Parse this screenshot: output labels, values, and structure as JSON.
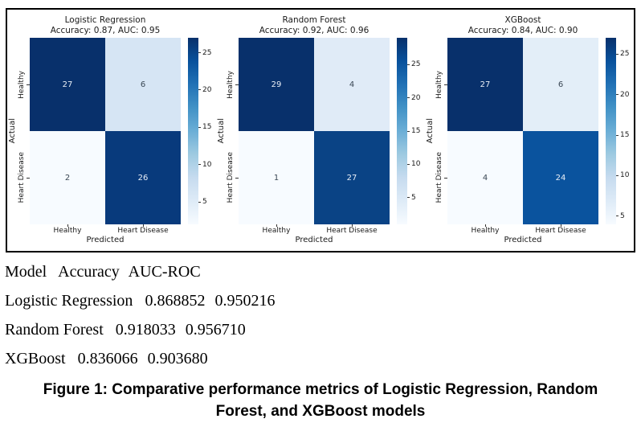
{
  "figure": {
    "panels": [
      {
        "title": "Logistic Regression",
        "subtitle": "Accuracy: 0.87, AUC: 0.95",
        "ylabel": "Actual",
        "xlabel": "Predicted",
        "yticks": [
          "Healthy",
          "Heart Disease"
        ],
        "xticks": [
          "Healthy",
          "Heart Disease"
        ],
        "cells": [
          {
            "value": "27",
            "bg": "#08306b",
            "fg": "#e9eff7"
          },
          {
            "value": "6",
            "bg": "#d6e5f4",
            "fg": "#3a4754"
          },
          {
            "value": "2",
            "bg": "#f7fbff",
            "fg": "#3a4754"
          },
          {
            "value": "26",
            "bg": "#083a7c",
            "fg": "#e9eff7"
          }
        ],
        "colorbar": {
          "vmin": 2,
          "vmax": 27,
          "ticks": [
            5,
            10,
            15,
            20,
            25
          ]
        }
      },
      {
        "title": "Random Forest",
        "subtitle": "Accuracy: 0.92, AUC: 0.96",
        "ylabel": "Actual",
        "xlabel": "Predicted",
        "yticks": [
          "Healthy",
          "Heart Disease"
        ],
        "xticks": [
          "Healthy",
          "Heart Disease"
        ],
        "cells": [
          {
            "value": "29",
            "bg": "#08306b",
            "fg": "#e9eff7"
          },
          {
            "value": "4",
            "bg": "#e0ebf7",
            "fg": "#3a4754"
          },
          {
            "value": "1",
            "bg": "#f7fbff",
            "fg": "#3a4754"
          },
          {
            "value": "27",
            "bg": "#0a4385",
            "fg": "#e9eff7"
          }
        ],
        "colorbar": {
          "vmin": 1,
          "vmax": 29,
          "ticks": [
            5,
            10,
            15,
            20,
            25
          ]
        }
      },
      {
        "title": "XGBoost",
        "subtitle": "Accuracy: 0.84, AUC: 0.90",
        "ylabel": "Actual",
        "xlabel": "Predicted",
        "yticks": [
          "Healthy",
          "Heart Disease"
        ],
        "xticks": [
          "Healthy",
          "Heart Disease"
        ],
        "cells": [
          {
            "value": "27",
            "bg": "#08306b",
            "fg": "#e9eff7"
          },
          {
            "value": "6",
            "bg": "#e3eef8",
            "fg": "#3a4754"
          },
          {
            "value": "4",
            "bg": "#f7fbff",
            "fg": "#3a4754"
          },
          {
            "value": "24",
            "bg": "#0a539e",
            "fg": "#e9eff7"
          }
        ],
        "colorbar": {
          "vmin": 4,
          "vmax": 27,
          "ticks": [
            5,
            10,
            15,
            20,
            25
          ]
        }
      }
    ]
  },
  "metrics_table": {
    "columns": [
      "Model",
      "Accuracy",
      "AUC-ROC"
    ],
    "rows": [
      {
        "model": "Logistic Regression",
        "accuracy": "0.868852",
        "auc_roc": "0.950216"
      },
      {
        "model": "Random Forest",
        "accuracy": "0.918033",
        "auc_roc": "0.956710"
      },
      {
        "model": "XGBoost",
        "accuracy": "0.836066",
        "auc_roc": "0.903680"
      }
    ]
  },
  "caption": {
    "line1": "Figure 1: Comparative performance metrics of Logistic Regression, Random",
    "line2": "Forest, and XGBoost models"
  },
  "chart_data": [
    {
      "type": "heatmap",
      "title": "Logistic Regression",
      "subtitle": "Accuracy: 0.87, AUC: 0.95",
      "xlabel": "Predicted",
      "ylabel": "Actual",
      "x_categories": [
        "Healthy",
        "Heart Disease"
      ],
      "y_categories": [
        "Healthy",
        "Heart Disease"
      ],
      "values": [
        [
          27,
          6
        ],
        [
          2,
          26
        ]
      ],
      "colormap": "Blues",
      "colorbar_ticks": [
        5,
        10,
        15,
        20,
        25
      ],
      "colorbar_position": "right"
    },
    {
      "type": "heatmap",
      "title": "Random Forest",
      "subtitle": "Accuracy: 0.92, AUC: 0.96",
      "xlabel": "Predicted",
      "ylabel": "Actual",
      "x_categories": [
        "Healthy",
        "Heart Disease"
      ],
      "y_categories": [
        "Healthy",
        "Heart Disease"
      ],
      "values": [
        [
          29,
          4
        ],
        [
          1,
          27
        ]
      ],
      "colormap": "Blues",
      "colorbar_ticks": [
        5,
        10,
        15,
        20,
        25
      ],
      "colorbar_position": "right"
    },
    {
      "type": "heatmap",
      "title": "XGBoost",
      "subtitle": "Accuracy: 0.84, AUC: 0.90",
      "xlabel": "Predicted",
      "ylabel": "Actual",
      "x_categories": [
        "Healthy",
        "Heart Disease"
      ],
      "y_categories": [
        "Healthy",
        "Heart Disease"
      ],
      "values": [
        [
          27,
          6
        ],
        [
          4,
          24
        ]
      ],
      "colormap": "Blues",
      "colorbar_ticks": [
        5,
        10,
        15,
        20,
        25
      ],
      "colorbar_position": "right"
    },
    {
      "type": "table",
      "columns": [
        "Model",
        "Accuracy",
        "AUC-ROC"
      ],
      "rows": [
        [
          "Logistic Regression",
          "0.868852",
          "0.950216"
        ],
        [
          "Random Forest",
          "0.918033",
          "0.956710"
        ],
        [
          "XGBoost",
          "0.836066",
          "0.903680"
        ]
      ]
    }
  ]
}
